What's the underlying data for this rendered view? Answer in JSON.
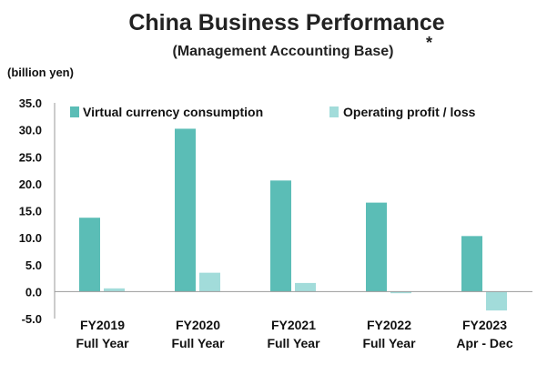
{
  "colors": {
    "virtual_currency": "#5BBDB6",
    "operating_profit": "#A2DCDA",
    "axis": "#9a9a9a",
    "text": "#111111"
  },
  "chart_data": {
    "type": "bar",
    "title": "China Business Performance",
    "subtitle": "(Management Accounting Base)",
    "subtitle_mark": "*",
    "unit_label": "(billion yen)",
    "categories": [
      [
        "FY2019",
        "Full Year"
      ],
      [
        "FY2020",
        "Full Year"
      ],
      [
        "FY2021",
        "Full Year"
      ],
      [
        "FY2022",
        "Full Year"
      ],
      [
        "FY2023",
        "Apr - Dec"
      ]
    ],
    "series": [
      {
        "name": "Virtual currency consumption",
        "values": [
          13.7,
          30.2,
          20.6,
          16.5,
          10.3
        ]
      },
      {
        "name": "Operating profit / loss",
        "values": [
          0.6,
          3.5,
          1.6,
          -0.3,
          -3.5
        ]
      }
    ],
    "y_ticks": [
      "35.0",
      "30.0",
      "25.0",
      "20.0",
      "15.0",
      "10.0",
      "5.0",
      "0.0",
      "-5.0"
    ],
    "ylim": [
      -5,
      35
    ],
    "grid": false,
    "legend_position": "top"
  }
}
